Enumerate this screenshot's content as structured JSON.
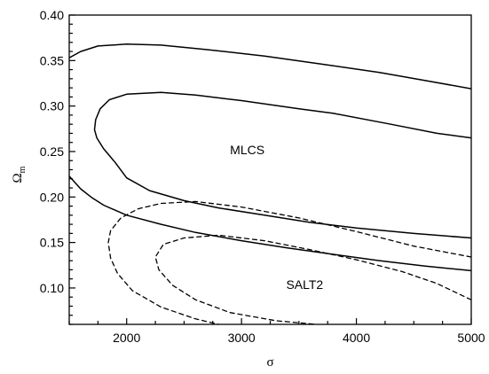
{
  "chart_data": {
    "type": "line",
    "title": "",
    "xlabel": "σ",
    "ylabel": {
      "main": "Ω",
      "sub": "m"
    },
    "xlim": [
      1500,
      5000
    ],
    "ylim": [
      0.06,
      0.4
    ],
    "x_major_ticks": [
      2000,
      3000,
      4000,
      5000
    ],
    "x_tick_labels": [
      "2000",
      "3000",
      "4000",
      "5000"
    ],
    "y_major_ticks": [
      0.1,
      0.15,
      0.2,
      0.25,
      0.3,
      0.35,
      0.4
    ],
    "y_tick_labels": [
      "0.10",
      "0.15",
      "0.20",
      "0.25",
      "0.30",
      "0.35",
      "0.40"
    ],
    "grid": false,
    "annotations": [
      {
        "text": "MLCS",
        "x": 3050,
        "y": 0.247
      },
      {
        "text": "SALT2",
        "x": 3550,
        "y": 0.099
      }
    ],
    "series": [
      {
        "group": "MLCS",
        "style": "solid",
        "points": [
          [
            1500,
            0.353
          ],
          [
            1600,
            0.36
          ],
          [
            1750,
            0.366
          ],
          [
            2000,
            0.368
          ],
          [
            2300,
            0.367
          ],
          [
            2700,
            0.362
          ],
          [
            3200,
            0.355
          ],
          [
            3700,
            0.346
          ],
          [
            4200,
            0.337
          ],
          [
            4600,
            0.328
          ],
          [
            5000,
            0.319
          ]
        ]
      },
      {
        "group": "MLCS",
        "style": "solid",
        "points": [
          [
            5000,
            0.265
          ],
          [
            4700,
            0.27
          ],
          [
            4300,
            0.28
          ],
          [
            3800,
            0.292
          ],
          [
            3500,
            0.297
          ],
          [
            3000,
            0.306
          ],
          [
            2600,
            0.312
          ],
          [
            2300,
            0.315
          ],
          [
            2000,
            0.313
          ],
          [
            1850,
            0.307
          ],
          [
            1770,
            0.297
          ],
          [
            1730,
            0.285
          ],
          [
            1720,
            0.274
          ],
          [
            1740,
            0.265
          ],
          [
            1800,
            0.253
          ],
          [
            1900,
            0.238
          ],
          [
            2000,
            0.221
          ],
          [
            2200,
            0.207
          ],
          [
            2500,
            0.196
          ],
          [
            2800,
            0.188
          ],
          [
            3200,
            0.18
          ],
          [
            3600,
            0.172
          ],
          [
            4000,
            0.166
          ],
          [
            4500,
            0.16
          ],
          [
            5000,
            0.155
          ]
        ]
      },
      {
        "group": "MLCS",
        "style": "solid",
        "points": [
          [
            1500,
            0.223
          ],
          [
            1600,
            0.209
          ],
          [
            1700,
            0.199
          ],
          [
            1800,
            0.191
          ],
          [
            2000,
            0.18
          ],
          [
            2300,
            0.17
          ],
          [
            2600,
            0.161
          ],
          [
            3000,
            0.152
          ],
          [
            3400,
            0.144
          ],
          [
            3800,
            0.137
          ],
          [
            4200,
            0.13
          ],
          [
            4600,
            0.124
          ],
          [
            5000,
            0.119
          ]
        ]
      },
      {
        "group": "SALT2",
        "style": "dashed",
        "points": [
          [
            5000,
            0.134
          ],
          [
            4500,
            0.146
          ],
          [
            4000,
            0.162
          ],
          [
            3500,
            0.177
          ],
          [
            3000,
            0.189
          ],
          [
            2600,
            0.195
          ],
          [
            2300,
            0.193
          ],
          [
            2100,
            0.187
          ],
          [
            1950,
            0.177
          ],
          [
            1860,
            0.163
          ],
          [
            1840,
            0.15
          ],
          [
            1860,
            0.133
          ],
          [
            1920,
            0.116
          ],
          [
            2050,
            0.097
          ],
          [
            2300,
            0.079
          ],
          [
            2600,
            0.066
          ],
          [
            2800,
            0.06
          ]
        ]
      },
      {
        "group": "SALT2",
        "style": "dashed",
        "points": [
          [
            5000,
            0.087
          ],
          [
            4700,
            0.105
          ],
          [
            4400,
            0.118
          ],
          [
            4000,
            0.131
          ],
          [
            3600,
            0.142
          ],
          [
            3200,
            0.152
          ],
          [
            2800,
            0.158
          ],
          [
            2500,
            0.155
          ],
          [
            2320,
            0.148
          ],
          [
            2250,
            0.134
          ],
          [
            2280,
            0.12
          ],
          [
            2400,
            0.103
          ],
          [
            2600,
            0.087
          ],
          [
            2900,
            0.073
          ],
          [
            3300,
            0.064
          ],
          [
            3650,
            0.06
          ]
        ]
      }
    ]
  }
}
